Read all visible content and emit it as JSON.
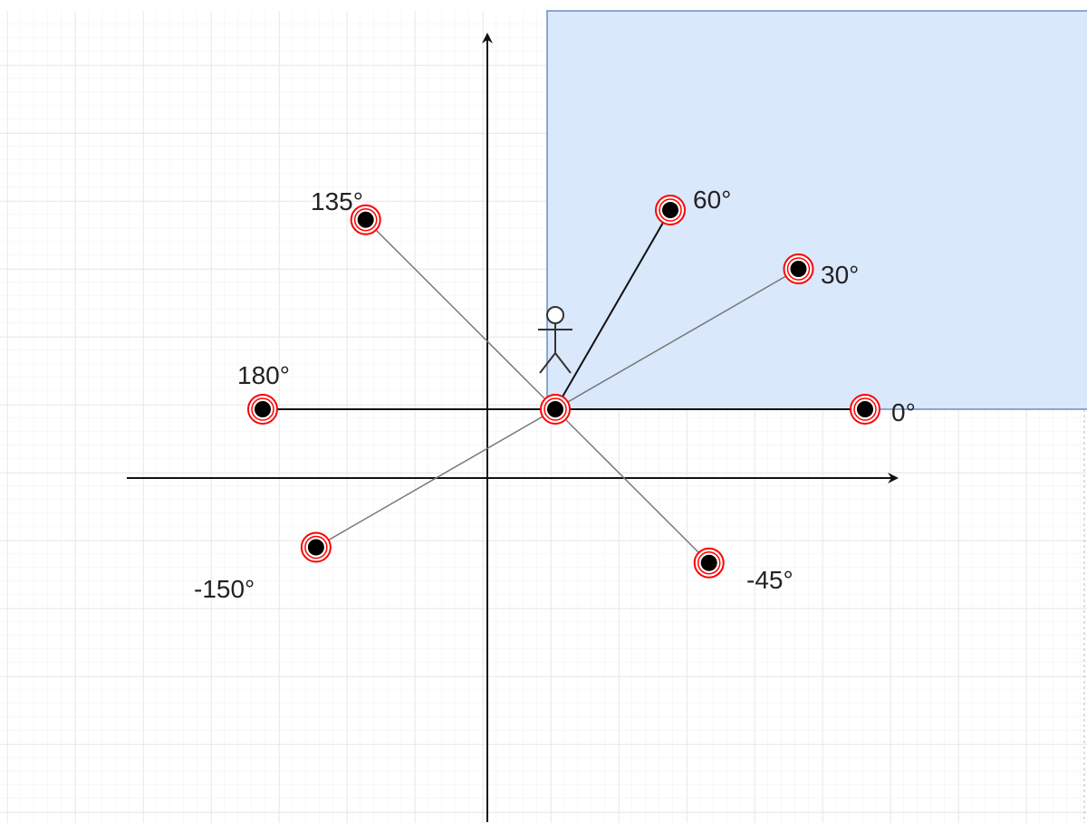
{
  "diagram": {
    "region_fill": "#dae8fc",
    "region_stroke": "#6c8ebf",
    "marker_ring_color": "#ff0000",
    "marker_dot_color": "#000000",
    "center_figure": "stick-figure-icon",
    "angles": [
      {
        "label": "0°",
        "angle": 0
      },
      {
        "label": "30°",
        "angle": 30
      },
      {
        "label": "60°",
        "angle": 60
      },
      {
        "label": "135°",
        "angle": 135
      },
      {
        "label": "180°",
        "angle": 180
      },
      {
        "label": "-150°",
        "angle": -150
      },
      {
        "label": "-45°",
        "angle": -45
      }
    ]
  }
}
